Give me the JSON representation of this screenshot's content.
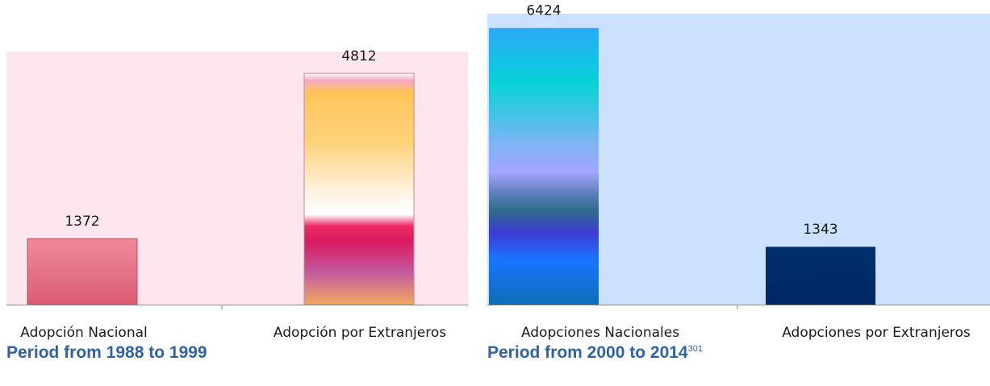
{
  "chart_data": [
    {
      "type": "bar",
      "categories": [
        "Adopción Nacional",
        "Adopción por Extranjeros"
      ],
      "values": [
        1372,
        4812
      ],
      "data_labels": [
        "1372",
        "4812"
      ],
      "ylim": [
        0,
        5500
      ],
      "grid": false,
      "caption": "Period from 1988 to 1999",
      "colors": {
        "plot_background": "#fde6ee",
        "bar_1": "#e5687c",
        "bar_2_top": "#ffc45a",
        "bar_2_mid": "#d81b60"
      }
    },
    {
      "type": "bar",
      "categories": [
        "Adopciones Nacionales",
        "Adopciones por Extranjeros"
      ],
      "values": [
        6424,
        1343
      ],
      "data_labels": [
        "6424",
        "1343"
      ],
      "ylim": [
        0,
        6700
      ],
      "grid": false,
      "caption": "Period from 2000 to 2014",
      "caption_footnote": "301",
      "colors": {
        "plot_background": "#cce0ff",
        "bar_1_top": "#2aa9f8",
        "bar_1_mid": "#a3a5ff",
        "bar_2": "#002a6b"
      }
    }
  ]
}
